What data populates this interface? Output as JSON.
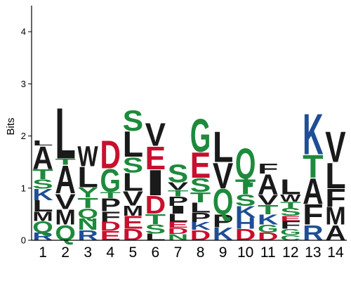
{
  "chart_data": {
    "type": "sequence-logo",
    "title": "",
    "xlabel": "",
    "ylabel": "Bits",
    "ylim": [
      0,
      4.5
    ],
    "yticks": [
      0,
      1,
      2,
      3,
      4
    ],
    "grid": false,
    "colors": {
      "hydrophobic": "#1a1a1a",
      "polar": "#1e8a3c",
      "acidic": "#c8102e",
      "basic": "#1f4e96",
      "amide": "#6a3d9a"
    },
    "color_map": {
      "A": "hydrophobic",
      "F": "hydrophobic",
      "I": "hydrophobic",
      "L": "hydrophobic",
      "M": "hydrophobic",
      "P": "hydrophobic",
      "V": "hydrophobic",
      "W": "hydrophobic",
      "C": "polar",
      "G": "polar",
      "S": "polar",
      "T": "polar",
      "Y": "polar",
      "Q": "polar",
      "N": "polar",
      "D": "acidic",
      "E": "acidic",
      "H": "basic",
      "K": "basic",
      "R": "basic"
    },
    "positions": [
      {
        "label": "1",
        "stack": [
          [
            "R",
            0.15
          ],
          [
            "Q",
            0.22
          ],
          [
            "M",
            0.18
          ],
          [
            "L",
            0.22
          ],
          [
            "K",
            0.22
          ],
          [
            "S",
            0.18
          ],
          [
            "T",
            0.2
          ],
          [
            "A",
            0.45
          ],
          [
            "L",
            0.1
          ]
        ]
      },
      {
        "label": "2",
        "stack": [
          [
            "Q",
            0.3
          ],
          [
            "M",
            0.3
          ],
          [
            "V",
            0.3
          ],
          [
            "A",
            0.55
          ],
          [
            "T",
            0.12
          ],
          [
            "L",
            1.0
          ]
        ]
      },
      {
        "label": "3",
        "stack": [
          [
            "R",
            0.2
          ],
          [
            "N",
            0.22
          ],
          [
            "Q",
            0.2
          ],
          [
            "T",
            0.2
          ],
          [
            "Y",
            0.2
          ],
          [
            "L",
            0.4
          ],
          [
            "W",
            0.4
          ]
        ]
      },
      {
        "label": "4",
        "stack": [
          [
            "E",
            0.18
          ],
          [
            "D",
            0.18
          ],
          [
            "F",
            0.2
          ],
          [
            "P",
            0.25
          ],
          [
            "T",
            0.12
          ],
          [
            "G",
            0.45
          ],
          [
            "D",
            0.55
          ]
        ]
      },
      {
        "label": "5",
        "stack": [
          [
            "D",
            0.22
          ],
          [
            "E",
            0.25
          ],
          [
            "M",
            0.2
          ],
          [
            "V",
            0.28
          ],
          [
            "L",
            0.35
          ],
          [
            "S",
            0.3
          ],
          [
            "L",
            0.5
          ],
          [
            "S",
            0.4
          ]
        ]
      },
      {
        "label": "6",
        "stack": [
          [
            "L",
            0.13
          ],
          [
            "S",
            0.18
          ],
          [
            "T",
            0.2
          ],
          [
            "D",
            0.35
          ],
          [
            "I",
            0.5
          ],
          [
            "E",
            0.45
          ],
          [
            "V",
            0.45
          ]
        ]
      },
      {
        "label": "7",
        "stack": [
          [
            "N",
            0.12
          ],
          [
            "D",
            0.12
          ],
          [
            "E",
            0.12
          ],
          [
            "L",
            0.15
          ],
          [
            "I",
            0.15
          ],
          [
            "P",
            0.18
          ],
          [
            "T",
            0.12
          ],
          [
            "V",
            0.15
          ],
          [
            "S",
            0.35
          ]
        ]
      },
      {
        "label": "8",
        "stack": [
          [
            "D",
            0.2
          ],
          [
            "K",
            0.15
          ],
          [
            "P",
            0.18
          ],
          [
            "L",
            0.2
          ],
          [
            "T",
            0.2
          ],
          [
            "S",
            0.27
          ],
          [
            "E",
            0.5
          ],
          [
            "G",
            0.65
          ]
        ]
      },
      {
        "label": "9",
        "stack": [
          [
            "K",
            0.25
          ],
          [
            "P",
            0.25
          ],
          [
            "Q",
            0.5
          ],
          [
            "V",
            0.5
          ],
          [
            "L",
            0.6
          ]
        ]
      },
      {
        "label": "10",
        "stack": [
          [
            "D",
            0.22
          ],
          [
            "H",
            0.22
          ],
          [
            "K",
            0.22
          ],
          [
            "S",
            0.22
          ],
          [
            "T",
            0.3
          ],
          [
            "Q",
            0.6
          ]
        ]
      },
      {
        "label": "11",
        "stack": [
          [
            "D",
            0.15
          ],
          [
            "G",
            0.15
          ],
          [
            "K",
            0.2
          ],
          [
            "T",
            0.18
          ],
          [
            "V",
            0.2
          ],
          [
            "A",
            0.4
          ],
          [
            "F",
            0.2
          ]
        ]
      },
      {
        "label": "12",
        "stack": [
          [
            "C",
            0.1
          ],
          [
            "G",
            0.12
          ],
          [
            "F",
            0.15
          ],
          [
            "E",
            0.1
          ],
          [
            "S",
            0.15
          ],
          [
            "T",
            0.12
          ],
          [
            "W",
            0.14
          ],
          [
            "L",
            0.3
          ]
        ]
      },
      {
        "label": "13",
        "stack": [
          [
            "R",
            0.3
          ],
          [
            "F",
            0.4
          ],
          [
            "A",
            0.5
          ],
          [
            "T",
            0.45
          ],
          [
            "K",
            0.8
          ]
        ]
      },
      {
        "label": "14",
        "stack": [
          [
            "A",
            0.3
          ],
          [
            "M",
            0.35
          ],
          [
            "F",
            0.35
          ],
          [
            "L",
            0.5
          ],
          [
            "V",
            0.6
          ]
        ]
      }
    ]
  }
}
